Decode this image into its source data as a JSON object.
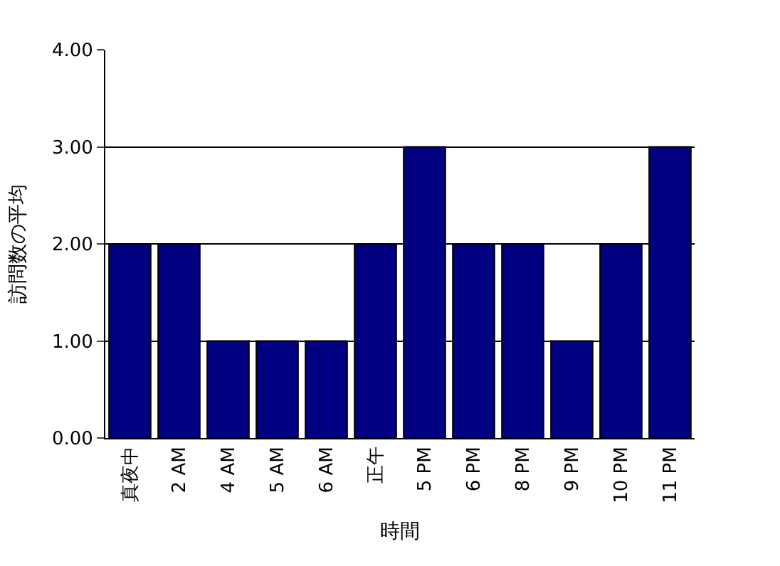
{
  "chart_data": {
    "type": "bar",
    "xlabel": "時間",
    "ylabel": "訪問数の平均",
    "categories": [
      "真夜中",
      "2 AM",
      "4 AM",
      "5 AM",
      "6 AM",
      "正午",
      "5 PM",
      "6 PM",
      "8 PM",
      "9 PM",
      "10 PM",
      "11 PM"
    ],
    "values": [
      2,
      2,
      1,
      1,
      1,
      2,
      3,
      2,
      2,
      1,
      2,
      3
    ],
    "color": "#000080",
    "ylim": [
      0,
      4
    ],
    "yticks": [
      {
        "value": 0,
        "label": "0.00"
      },
      {
        "value": 1,
        "label": "1.00"
      },
      {
        "value": 2,
        "label": "2.00"
      },
      {
        "value": 3,
        "label": "3.00"
      },
      {
        "value": 4,
        "label": "4.00"
      }
    ],
    "grid": "y"
  }
}
